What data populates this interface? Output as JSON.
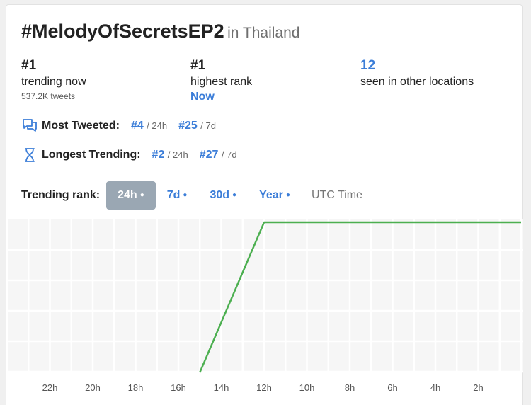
{
  "title": {
    "hashtag": "#MelodyOfSecretsEP2",
    "location": "in Thailand"
  },
  "stats": {
    "trending": {
      "value": "#1",
      "label": "trending now",
      "tweets": "537.2K tweets"
    },
    "highest": {
      "value": "#1",
      "label": "highest rank",
      "when": "Now"
    },
    "other": {
      "value": "12",
      "label": "seen in other locations"
    }
  },
  "most_tweeted": {
    "label": "Most Tweeted:",
    "icon": "chat-bubbles-icon",
    "ranks": [
      {
        "rank": "#4",
        "period": "/ 24h"
      },
      {
        "rank": "#25",
        "period": "/ 7d"
      }
    ]
  },
  "longest_trending": {
    "label": "Longest Trending:",
    "icon": "hourglass-icon",
    "ranks": [
      {
        "rank": "#2",
        "period": "/ 24h"
      },
      {
        "rank": "#27",
        "period": "/ 7d"
      }
    ]
  },
  "trending_rank": {
    "label": "Trending rank:",
    "tabs": [
      {
        "label": "24h",
        "active": true
      },
      {
        "label": "7d",
        "active": false
      },
      {
        "label": "30d",
        "active": false
      },
      {
        "label": "Year",
        "active": false
      }
    ],
    "timezone": "UTC Time"
  },
  "colors": {
    "accent": "#3b7dd8",
    "active_tab": "#9aa7b3",
    "line": "#4caf50",
    "grid": "#ebebeb"
  },
  "chart_data": {
    "type": "line",
    "x_ticks": [
      "22h",
      "20h",
      "18h",
      "16h",
      "14h",
      "12h",
      "10h",
      "8h",
      "6h",
      "4h",
      "2h"
    ],
    "series": [
      {
        "hours_ago": [
          15,
          12,
          0
        ],
        "rank": [
          6,
          1,
          1
        ]
      }
    ],
    "x_range_hours_ago": [
      24,
      0
    ],
    "y_rank_range": [
      1,
      6
    ],
    "grid": true
  }
}
